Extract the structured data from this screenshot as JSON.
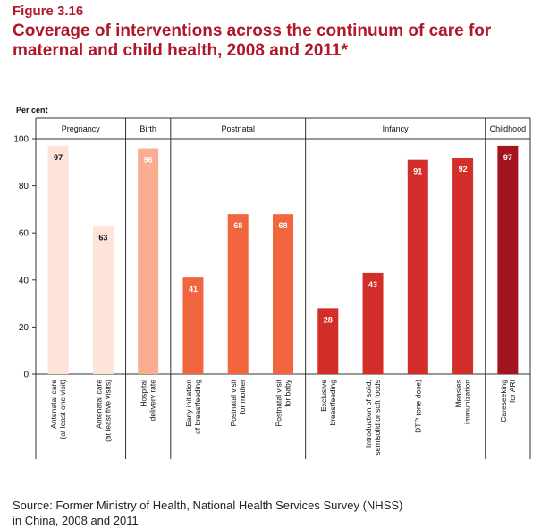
{
  "figure_label": "Figure 3.16",
  "title_line1": "Coverage of interventions across the continuum of care for",
  "title_line2": "maternal and child health, 2008 and 2011*",
  "source_line1": "Source: Former Ministry of Health, National Health Services Survey (NHSS)",
  "source_line2": "in China, 2008 and 2011",
  "chart_data": {
    "type": "bar",
    "ylabel": "Per cent",
    "ylim": [
      0,
      100
    ],
    "yticks": [
      0,
      20,
      40,
      60,
      80,
      100
    ],
    "grid": false,
    "legend": "none",
    "groups": [
      {
        "name": "Pregnancy",
        "count": 2
      },
      {
        "name": "Birth",
        "count": 1
      },
      {
        "name": "Postnatal",
        "count": 3
      },
      {
        "name": "Infancy",
        "count": 4
      },
      {
        "name": "Childhood",
        "count": 1
      }
    ],
    "categories": [
      [
        "Antenatal care",
        "(at least one visit)"
      ],
      [
        "Antenatal care",
        "(at least five visits)"
      ],
      [
        "Hospital",
        "delivery rate"
      ],
      [
        "Early initiation",
        "of breastfeeding"
      ],
      [
        "Postnatal visit",
        "for mother"
      ],
      [
        "Postnatal visit",
        "for baby"
      ],
      [
        "Exclusive",
        "breastfeeding"
      ],
      [
        "Introduction of solid,",
        "semisolid or soft foods"
      ],
      [
        "DTP (one dose)"
      ],
      [
        "Measles",
        "immunization"
      ],
      [
        "Careseeking",
        "for ARI"
      ]
    ],
    "values": [
      97,
      63,
      96,
      41,
      68,
      68,
      28,
      43,
      91,
      92,
      97
    ],
    "colors": [
      "#fde3d8",
      "#fde3d8",
      "#f9ad91",
      "#f2663f",
      "#f2663f",
      "#f2663f",
      "#d42e2a",
      "#d42e2a",
      "#d42e2a",
      "#d42e2a",
      "#a3141f"
    ],
    "label_colors": [
      "#111111",
      "#111111",
      "#ffffff",
      "#ffffff",
      "#ffffff",
      "#ffffff",
      "#ffffff",
      "#ffffff",
      "#ffffff",
      "#ffffff",
      "#ffffff"
    ]
  }
}
